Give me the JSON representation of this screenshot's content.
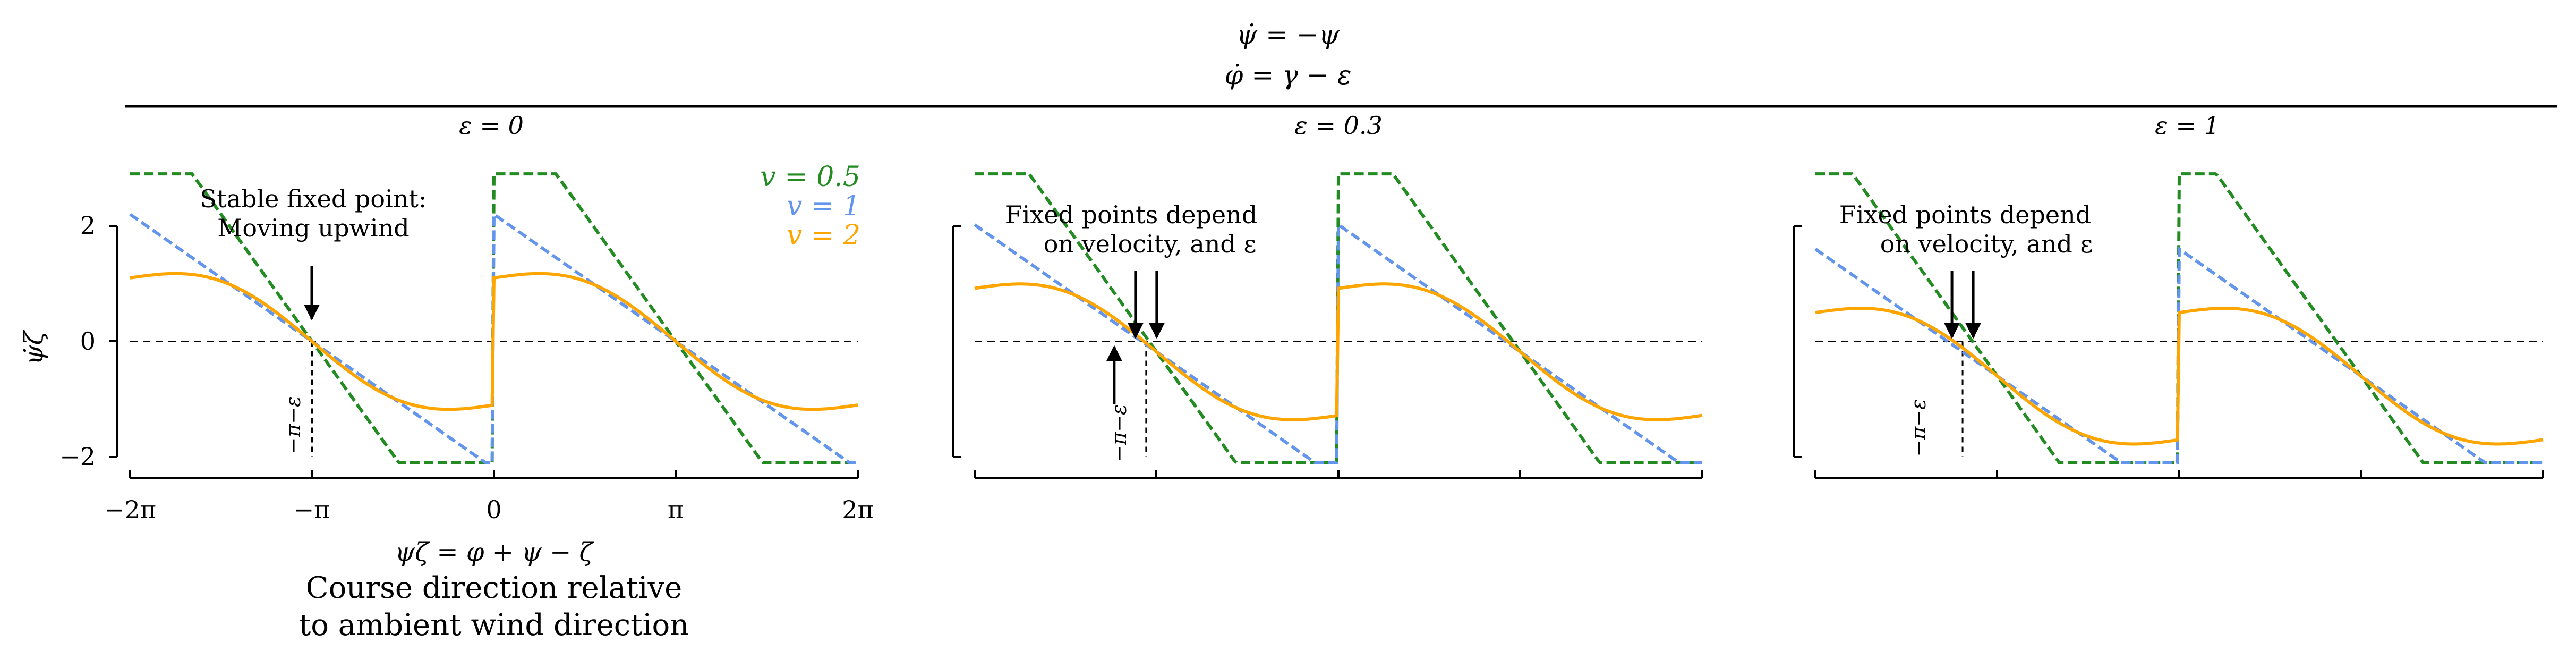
{
  "header": {
    "eq1": "ψ̇ = −ψ",
    "eq2": "φ̇ = γ − ε"
  },
  "colors": {
    "v05": "#228B22",
    "v1": "#6495ED",
    "v2": "#FFA500",
    "axis": "#000000"
  },
  "x_axis": {
    "label": "ψζ = φ + ψ − ζ",
    "caption_line1": "Course direction relative",
    "caption_line2": "to ambient wind direction",
    "tick_labels": [
      "−2π",
      "−π",
      "0",
      "π",
      "2π"
    ]
  },
  "y_axis": {
    "label": "ψ̇ζ",
    "tick_labels": [
      "2",
      "0",
      "−2"
    ]
  },
  "legend": [
    "v = 0.5",
    "v = 1",
    "v = 2"
  ],
  "chart_data": [
    {
      "type": "line",
      "title": "ε = 0",
      "epsilon": 0,
      "xlim": [
        -6.283,
        6.283
      ],
      "ylim": [
        -2,
        2
      ],
      "xticks": [
        -6.283,
        -3.1416,
        0,
        3.1416,
        6.283
      ],
      "yticks": [
        -2,
        0,
        2
      ],
      "series": [
        {
          "name": "v = 0.5",
          "v": 0.5,
          "color": "#228B22"
        },
        {
          "name": "v = 1",
          "v": 1,
          "color": "#6495ED"
        },
        {
          "name": "v = 2",
          "v": 2,
          "color": "#FFA500"
        }
      ],
      "annotation": {
        "line1": "Stable fixed point:",
        "line2": "Moving upwind"
      },
      "marker_label": "−π−ε"
    },
    {
      "type": "line",
      "title": "ε = 0.3",
      "epsilon": 0.3,
      "xlim": [
        -6.283,
        6.283
      ],
      "ylim": [
        -2,
        2
      ],
      "series": [
        {
          "name": "v = 0.5",
          "v": 0.5,
          "color": "#228B22"
        },
        {
          "name": "v = 1",
          "v": 1,
          "color": "#6495ED"
        },
        {
          "name": "v = 2",
          "v": 2,
          "color": "#FFA500"
        }
      ],
      "annotation": {
        "line1": "Fixed points depend",
        "line2": "on velocity, and ε"
      },
      "marker_label": "−π−ε"
    },
    {
      "type": "line",
      "title": "ε = 1",
      "epsilon": 1,
      "xlim": [
        -6.283,
        6.283
      ],
      "ylim": [
        -2,
        2
      ],
      "series": [
        {
          "name": "v = 0.5",
          "v": 0.5,
          "color": "#228B22"
        },
        {
          "name": "v = 1",
          "v": 1,
          "color": "#6495ED"
        },
        {
          "name": "v = 2",
          "v": 2,
          "color": "#FFA500"
        }
      ],
      "annotation": {
        "line1": "Fixed points depend",
        "line2": "on velocity, and ε"
      },
      "marker_label": "−π−ε"
    }
  ]
}
